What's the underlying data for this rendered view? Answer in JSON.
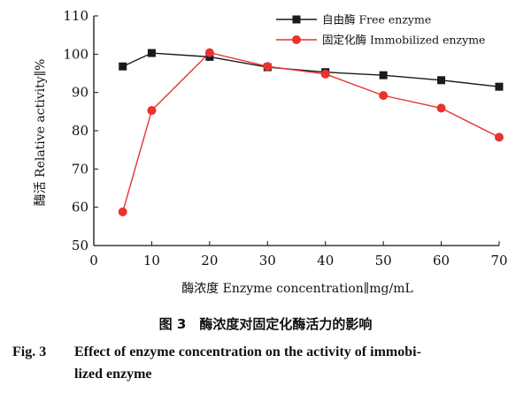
{
  "chart_data": {
    "type": "line",
    "x": [
      5,
      10,
      20,
      30,
      40,
      50,
      60,
      70
    ],
    "series": [
      {
        "name": "自由酶 Free enzyme",
        "color": "#1a1a1a",
        "marker": "square",
        "values": [
          96.8,
          100.3,
          99.3,
          96.6,
          95.3,
          94.5,
          93.2,
          91.5
        ]
      },
      {
        "name": "固定化酶 Immobilized enzyme",
        "color": "#e8322e",
        "marker": "circle",
        "values": [
          58.8,
          85.3,
          100.4,
          96.8,
          94.8,
          89.2,
          85.9,
          78.3
        ]
      }
    ],
    "xlabel": "酶浓度 Enzyme concentration∥mg/mL",
    "ylabel": "酶活 Relative activity∥%",
    "xlim": [
      0,
      70
    ],
    "ylim": [
      50,
      110
    ],
    "xticks": [
      "0",
      "10",
      "20",
      "30",
      "40",
      "50",
      "60",
      "70"
    ],
    "yticks": [
      "50",
      "60",
      "70",
      "80",
      "90",
      "100",
      "110"
    ],
    "legend_position": "top-right",
    "grid": false
  },
  "caption": {
    "cn": "图 3　酶浓度对固定化酶活力的影响",
    "fig_label": "Fig. 3",
    "en_line1": "Effect of enzyme concentration on the activity of immobi-",
    "en_line2": "lized enzyme"
  }
}
